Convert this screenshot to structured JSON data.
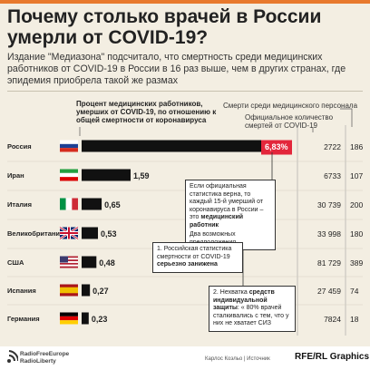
{
  "title": "Почему столько врачей в России умерли от COVID-19?",
  "subtitle": "Издание \"Медиазона\" подсчитало, что смертность среди медицинских работников от COVID-19 в России в 16 раз выше, чем в других странах, где эпидемия приобрела такой же размах",
  "headers": {
    "percent": "Процент медицинских работников, умерших от COVID-19, по отношению к общей смертности от коронавируса",
    "deaths_medical": "Смерти среди медицинского персонала",
    "official_deaths": "Официальное количество смертей от COVID-19"
  },
  "chart_data": {
    "type": "bar",
    "title": "Почему столько врачей в России умерли от COVID-19?",
    "categories": [
      "Россия",
      "Иран",
      "Италия",
      "Великобритания",
      "США",
      "Испания",
      "Германия"
    ],
    "values": [
      6.83,
      1.59,
      0.65,
      0.53,
      0.48,
      0.27,
      0.23
    ],
    "value_labels": [
      "6,83%",
      "1,59",
      "0,65",
      "0,53",
      "0,48",
      "0,27",
      "0,23"
    ],
    "official_deaths": [
      "2722",
      "6733",
      "30 739",
      "33 998",
      "81 729",
      "27 459",
      "7824"
    ],
    "medical_deaths": [
      "186",
      "107",
      "200",
      "180",
      "389",
      "74",
      "18"
    ],
    "xlim": [
      0,
      6.83
    ],
    "highlight_color": "#e3263b",
    "bar_color": "#111111"
  },
  "notes": {
    "note1_text": "Если официальная статистика верна, то каждый 15-й умерший от коронавируса в России – это ",
    "note1_bold": "медицинский работник",
    "note1_extra": "Два возможных предположения",
    "note2_text": "1. Российская статистика смертности от COVID-19 ",
    "note2_bold": "серьезно занижена",
    "note3_text": "2. Нехватка ",
    "note3_bold1": "средств индивидуальной защиты",
    "note3_text2": ": ",
    "note3_rest": "« 80% врачей сталкивались с тем, что у них не хватает СИЗ"
  },
  "footer": {
    "logo_line1": "RadioFreeEurope",
    "logo_line2": "RadioLiberty",
    "credit": "Карлос Коэльо | Источник",
    "brand": "RFE/RL Graphics"
  },
  "colors": {
    "background": "#f3eee2",
    "accent": "#e8792d"
  }
}
